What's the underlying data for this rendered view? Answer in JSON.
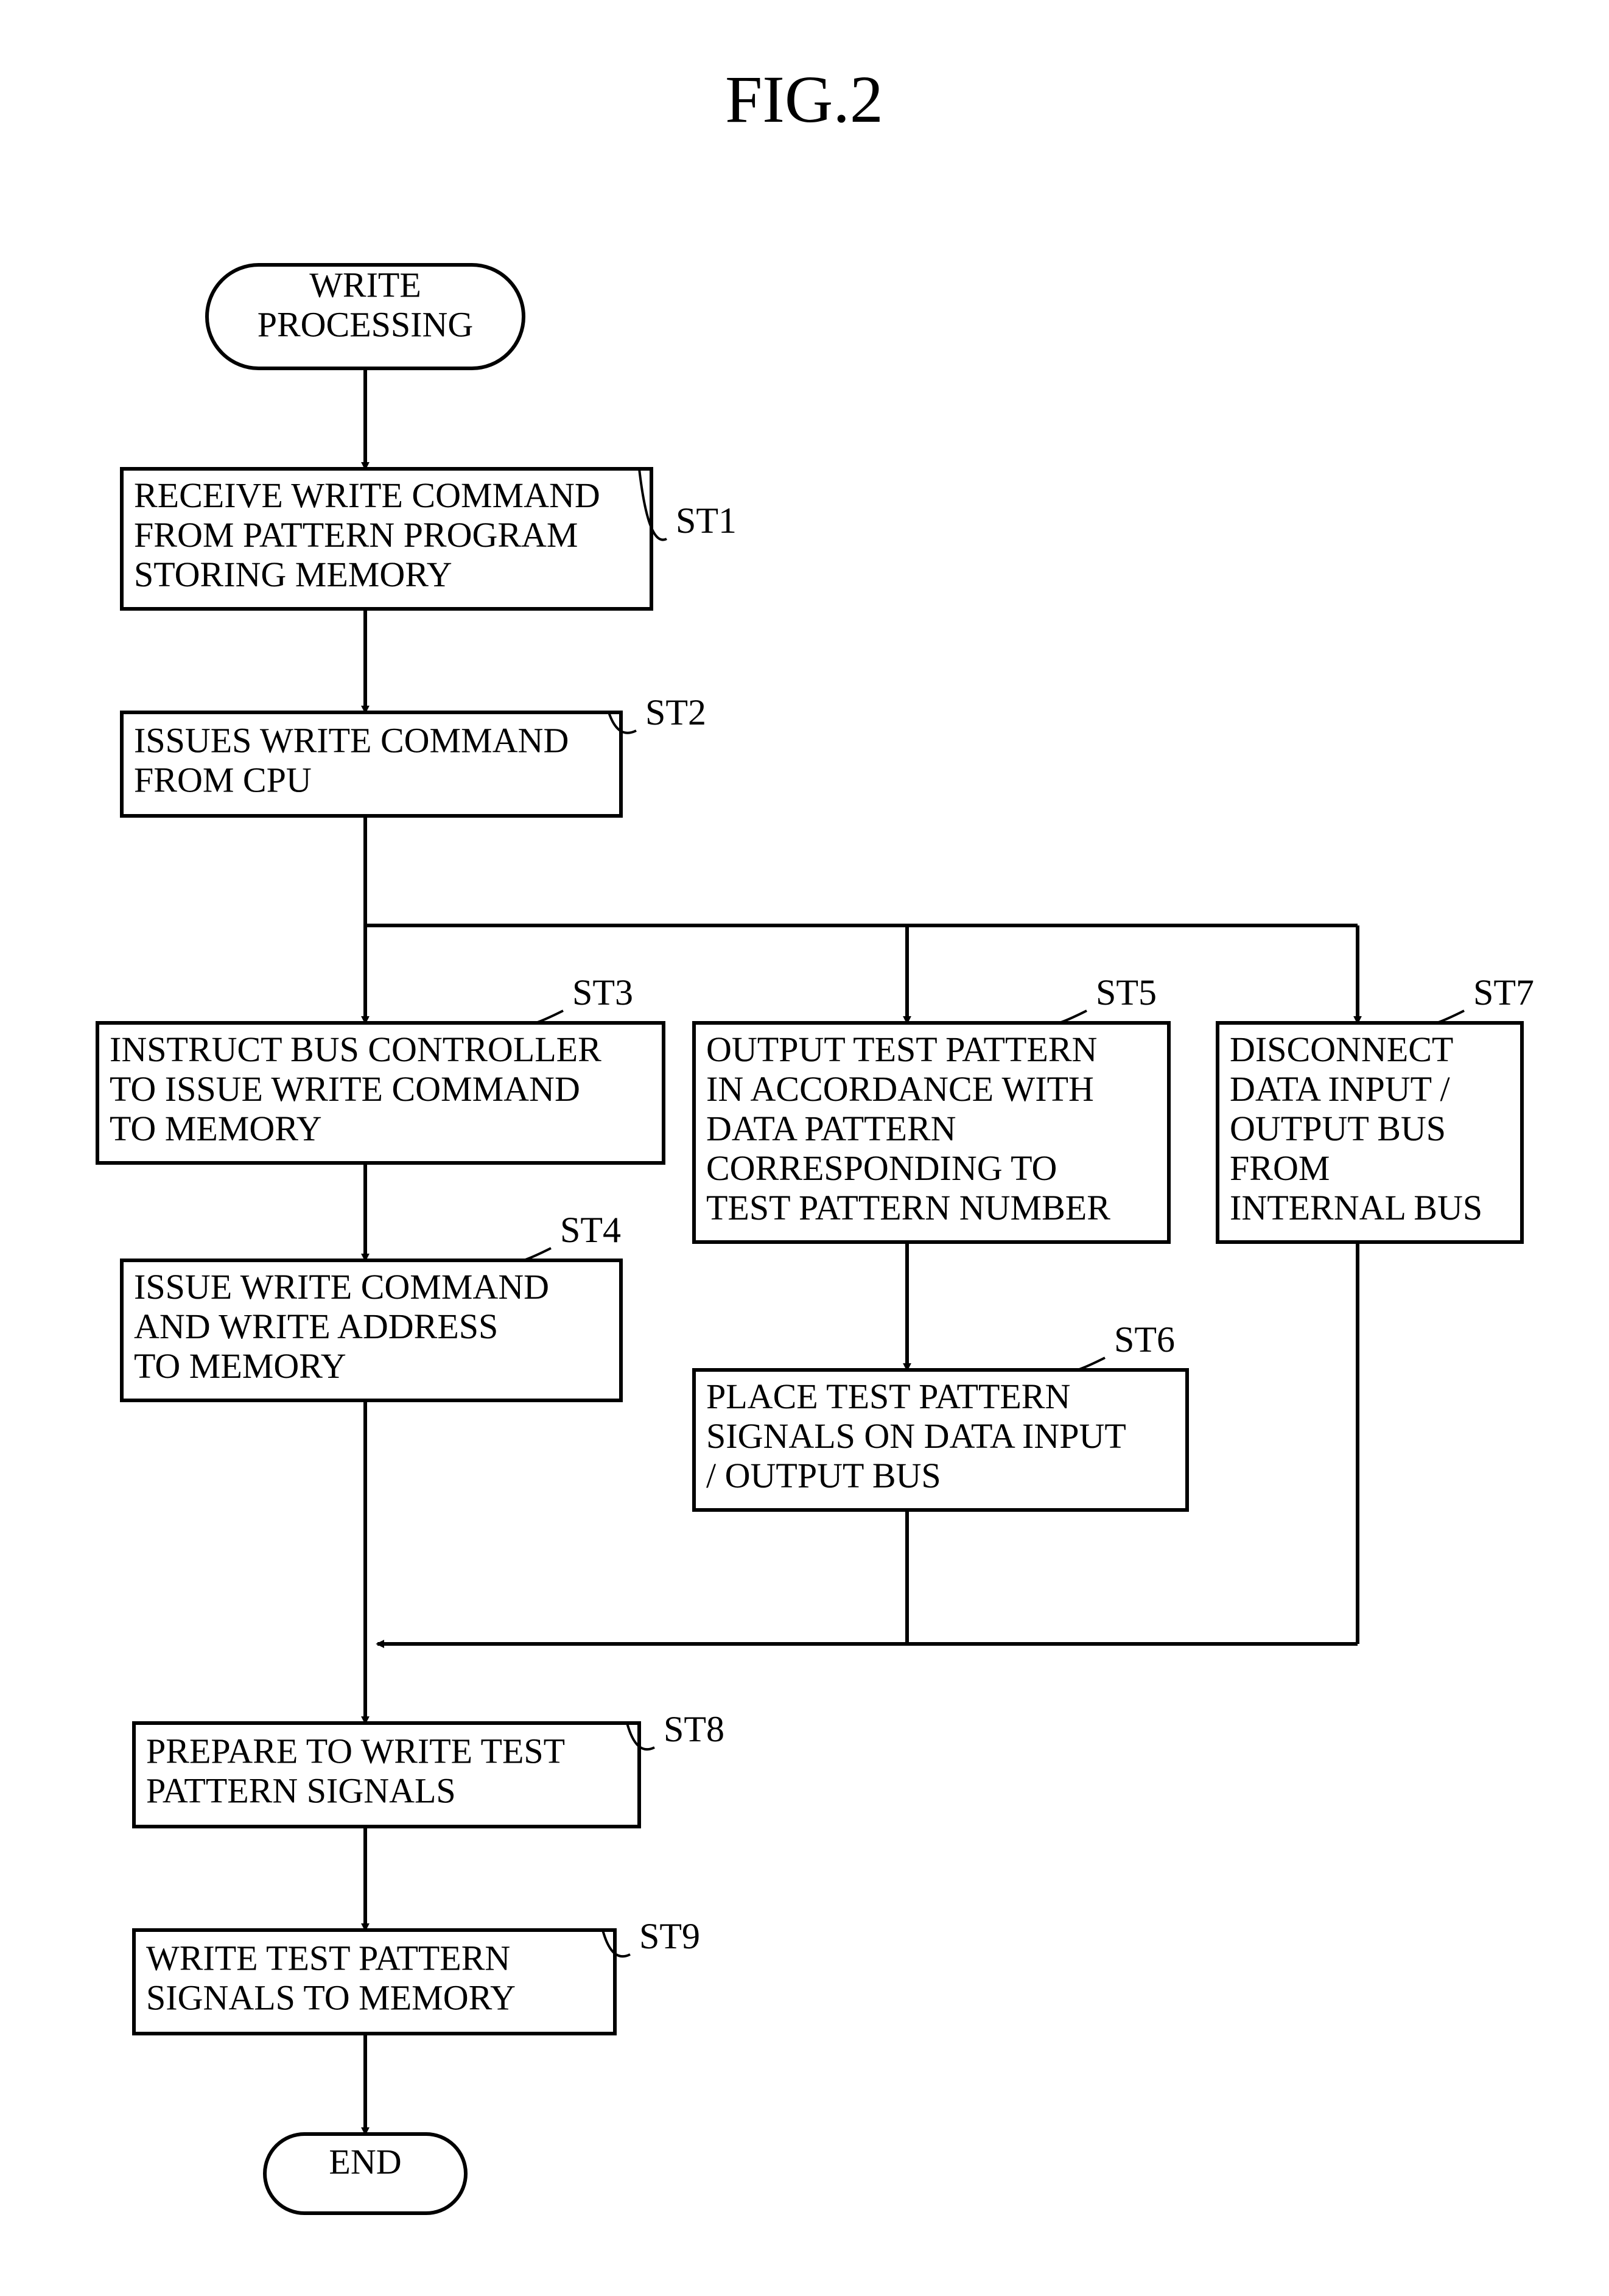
{
  "figure": {
    "title": "FIG.2",
    "title_fontsize": 110,
    "background_color": "#ffffff",
    "stroke_color": "#000000",
    "stroke_width": 6,
    "box_fontsize": 58,
    "label_fontsize": 60,
    "terminator_rx": 60,
    "start": {
      "lines": [
        "WRITE",
        "PROCESSING"
      ]
    },
    "end": {
      "text": "END"
    },
    "nodes": {
      "ST1": {
        "label": "ST1",
        "lines": [
          "RECEIVE WRITE COMMAND",
          "FROM PATTERN PROGRAM",
          "STORING MEMORY"
        ]
      },
      "ST2": {
        "label": "ST2",
        "lines": [
          "ISSUES WRITE COMMAND",
          "FROM CPU"
        ]
      },
      "ST3": {
        "label": "ST3",
        "lines": [
          "INSTRUCT BUS CONTROLLER",
          "TO ISSUE WRITE COMMAND",
          "TO MEMORY"
        ]
      },
      "ST4": {
        "label": "ST4",
        "lines": [
          "ISSUE WRITE COMMAND",
          "AND WRITE ADDRESS",
          "TO MEMORY"
        ]
      },
      "ST5": {
        "label": "ST5",
        "lines": [
          "OUTPUT TEST PATTERN",
          "IN ACCORDANCE WITH",
          "DATA PATTERN",
          "CORRESPONDING TO",
          "TEST PATTERN NUMBER"
        ]
      },
      "ST6": {
        "label": "ST6",
        "lines": [
          "PLACE TEST PATTERN",
          "SIGNALS ON DATA INPUT",
          "/ OUTPUT BUS"
        ]
      },
      "ST7": {
        "label": "ST7",
        "lines": [
          "DISCONNECT",
          "DATA INPUT /",
          "OUTPUT BUS",
          "FROM",
          "INTERNAL BUS"
        ]
      },
      "ST8": {
        "label": "ST8",
        "lines": [
          "PREPARE TO WRITE TEST",
          "PATTERN SIGNALS"
        ]
      },
      "ST9": {
        "label": "ST9",
        "lines": [
          "WRITE TEST PATTERN",
          "SIGNALS TO MEMORY"
        ]
      }
    }
  }
}
